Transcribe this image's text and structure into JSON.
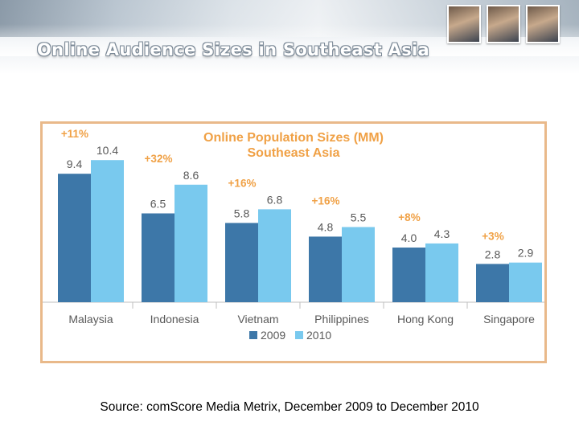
{
  "header": {
    "title": "Online Audience Sizes in Southeast Asia"
  },
  "colors": {
    "series_2009": "#3d77a8",
    "series_2010": "#79c9ee",
    "growth_label": "#f0a146",
    "frame_border": "#e9b98a"
  },
  "chart_data": {
    "type": "bar",
    "title": "Online Population Sizes (MM)",
    "subtitle": "Southeast Asia",
    "categories": [
      "Malaysia",
      "Indonesia",
      "Vietnam",
      "Philippines",
      "Hong Kong",
      "Singapore"
    ],
    "series": [
      {
        "name": "2009",
        "values": [
          9.4,
          6.5,
          5.8,
          4.8,
          4.0,
          2.8
        ],
        "labels": [
          "9.4",
          "6.5",
          "5.8",
          "4.8",
          "4.0",
          "2.8"
        ],
        "color": "#3d77a8"
      },
      {
        "name": "2010",
        "values": [
          10.4,
          8.6,
          6.8,
          5.5,
          4.3,
          2.9
        ],
        "labels": [
          "10.4",
          "8.6",
          "6.8",
          "5.5",
          "4.3",
          "2.9"
        ],
        "color": "#79c9ee"
      }
    ],
    "growth_labels": [
      "+11%",
      "+32%",
      "+16%",
      "+16%",
      "+8%",
      "+3%"
    ],
    "ylim": [
      0,
      12
    ],
    "grid": false,
    "legend_position": "bottom"
  },
  "footer": {
    "source": "Source: comScore Media Metrix, December 2009 to December 2010"
  }
}
